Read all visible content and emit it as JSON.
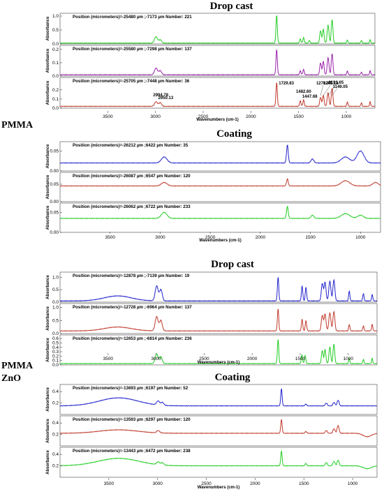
{
  "figure": {
    "side_labels": [
      "PMMA",
      "PMMA",
      "ZnO"
    ]
  },
  "chart_data": [
    {
      "type": "line",
      "title": "Drop cast",
      "xlabel": "Wavenumbers (cm-1)",
      "ylabel": "Absorbance",
      "xlim": [
        4000,
        700
      ],
      "x_ticks": [
        3500,
        3000,
        2500,
        2000,
        1500,
        1000
      ],
      "panels": [
        {
          "position": "Position (micrometers)=-25480 µm ;-7173 µm  Number: 221",
          "color": "#22cc22",
          "ylim": [
            0,
            1.05
          ],
          "y_ticks": [
            0.0,
            0.5,
            1.0
          ],
          "y_tick_labels": [
            "0.0",
            "0.5",
            "1.0"
          ],
          "base": 0.03,
          "peaks": [
            [
              2994,
              0.23,
              22
            ],
            [
              2950,
              0.12,
              20
            ],
            [
              1730,
              1.0,
              10
            ],
            [
              1482,
              0.15,
              10
            ],
            [
              1448,
              0.2,
              10
            ],
            [
              1388,
              0.1,
              9
            ],
            [
              1270,
              0.45,
              12
            ],
            [
              1241,
              0.5,
              12
            ],
            [
              1191,
              0.65,
              13
            ],
            [
              1149,
              0.85,
              12
            ],
            [
              989,
              0.12,
              8
            ],
            [
              842,
              0.1,
              8
            ],
            [
              750,
              0.12,
              8
            ]
          ]
        },
        {
          "position": "Position (micrometers)=-25580 µm ;-7298 µm  Number: 137",
          "color": "#9922aa",
          "ylim": [
            0,
            0.22
          ],
          "y_ticks": [
            0.0,
            0.1,
            0.2
          ],
          "y_tick_labels": [
            "0.0",
            "0.1",
            "0.2"
          ],
          "base": 0.01,
          "peaks": [
            [
              2994,
              0.05,
              22
            ],
            [
              2950,
              0.03,
              20
            ],
            [
              1730,
              0.19,
              10
            ],
            [
              1482,
              0.03,
              10
            ],
            [
              1448,
              0.04,
              10
            ],
            [
              1270,
              0.09,
              12
            ],
            [
              1241,
              0.1,
              12
            ],
            [
              1191,
              0.13,
              13
            ],
            [
              1149,
              0.16,
              12
            ],
            [
              989,
              0.03,
              8
            ],
            [
              842,
              0.02,
              8
            ],
            [
              750,
              0.03,
              8
            ]
          ]
        },
        {
          "position": "Position (micrometers)=-25705 µm ;-7448 µm  Number: 36",
          "color": "#c0392b",
          "ylim": [
            0,
            0.32
          ],
          "y_ticks": [
            0.0,
            0.1,
            0.2
          ],
          "y_tick_labels": [
            "0.0",
            "0.1",
            "0.2"
          ],
          "base": 0.02,
          "peaks": [
            [
              2994,
              0.05,
              22
            ],
            [
              2950,
              0.04,
              20
            ],
            [
              1730,
              0.26,
              10
            ],
            [
              1482,
              0.06,
              10
            ],
            [
              1448,
              0.07,
              10
            ],
            [
              1270,
              0.1,
              12
            ],
            [
              1241,
              0.12,
              12
            ],
            [
              1191,
              0.15,
              13
            ],
            [
              1149,
              0.2,
              12
            ],
            [
              989,
              0.05,
              8
            ],
            [
              842,
              0.04,
              8
            ],
            [
              750,
              0.05,
              8
            ]
          ],
          "annotations": [
            "1729.83",
            "1482.60",
            "1447.68",
            "1270.97",
            "1241.18",
            "1191.65",
            "1149.05",
            "2994.78",
            "2950.13"
          ]
        }
      ]
    },
    {
      "type": "line",
      "title": "Coating",
      "xlabel": "Wavenumbers (cm-1)",
      "ylabel": "Absorbance",
      "xlim": [
        4000,
        800
      ],
      "x_ticks": [
        3500,
        3000,
        2500,
        2000,
        1500,
        1000
      ],
      "panels": [
        {
          "position": "Position (micrometers)=-26212 µm ;6422 µm  Number: 35",
          "color": "#2222cc",
          "ylim": [
            0,
            0.07
          ],
          "y_ticks": [
            0.0,
            0.05
          ],
          "y_tick_labels": [
            "0.00",
            "0.05"
          ],
          "base": 0.02,
          "peaks": [
            [
              2960,
              0.015,
              40
            ],
            [
              1730,
              0.045,
              12
            ],
            [
              1480,
              0.01,
              20
            ],
            [
              1150,
              0.015,
              60
            ],
            [
              1000,
              0.03,
              50
            ]
          ]
        },
        {
          "position": "Position (micrometers)=-26087 µm ;6547 µm  Number: 120",
          "color": "#c0392b",
          "ylim": [
            0,
            0.08
          ],
          "y_ticks": [
            0.0,
            0.05
          ],
          "y_tick_labels": [
            "0.00",
            "0.05"
          ],
          "base": 0.045,
          "peaks": [
            [
              2960,
              0.01,
              40
            ],
            [
              1730,
              0.02,
              12
            ],
            [
              1150,
              0.015,
              60
            ],
            [
              850,
              0.01,
              40
            ]
          ]
        },
        {
          "position": "Position (micrometers)=-26062 µm ;6722 µm  Number: 233",
          "color": "#22cc22",
          "ylim": [
            0,
            0.07
          ],
          "y_ticks": [
            0.0,
            0.05
          ],
          "y_tick_labels": [
            "0.00",
            "0.05"
          ],
          "base": 0.035,
          "peaks": [
            [
              2960,
              0.015,
              40
            ],
            [
              1730,
              0.03,
              12
            ],
            [
              1480,
              0.008,
              20
            ],
            [
              1150,
              0.012,
              60
            ],
            [
              1000,
              0.008,
              40
            ]
          ]
        }
      ]
    },
    {
      "type": "line",
      "title": "Drop cast",
      "xlabel": "Wavenumbers (cm-1)",
      "ylabel": "Absorbance",
      "xlim": [
        4000,
        700
      ],
      "x_ticks": [
        3500,
        3000,
        2500,
        2000,
        1500,
        1000
      ],
      "panels": [
        {
          "position": "Position (micrometers)=-12878 µm ;-7139 µm  Number: 19",
          "color": "#2222cc",
          "ylim": [
            0,
            1.15
          ],
          "y_ticks": [
            0.0,
            0.5,
            1.0
          ],
          "y_tick_labels": [
            "0.0",
            "0.5",
            "1.0"
          ],
          "base": 0.05,
          "peaks": [
            [
              3400,
              0.2,
              200
            ],
            [
              2994,
              0.6,
              22
            ],
            [
              2950,
              0.45,
              20
            ],
            [
              1730,
              0.95,
              10
            ],
            [
              1480,
              0.6,
              10
            ],
            [
              1440,
              0.55,
              10
            ],
            [
              1270,
              0.7,
              14
            ],
            [
              1241,
              0.75,
              14
            ],
            [
              1191,
              0.8,
              15
            ],
            [
              1149,
              0.85,
              14
            ],
            [
              989,
              0.4,
              9
            ],
            [
              842,
              0.3,
              9
            ],
            [
              750,
              0.25,
              9
            ]
          ]
        },
        {
          "position": "Position (micrometers)=-12728 µm ;-6964 µm  Number: 137",
          "color": "#c0392b",
          "ylim": [
            0,
            1.1
          ],
          "y_ticks": [
            0.0,
            0.5,
            1.0
          ],
          "y_tick_labels": [
            "0.0",
            "0.5",
            "1.0"
          ],
          "base": 0.1,
          "peaks": [
            [
              3400,
              0.15,
              200
            ],
            [
              2994,
              0.55,
              22
            ],
            [
              2950,
              0.4,
              20
            ],
            [
              1730,
              0.85,
              10
            ],
            [
              1480,
              0.45,
              10
            ],
            [
              1440,
              0.4,
              10
            ],
            [
              1270,
              0.6,
              14
            ],
            [
              1241,
              0.65,
              14
            ],
            [
              1191,
              0.7,
              15
            ],
            [
              1149,
              0.75,
              14
            ],
            [
              989,
              0.25,
              9
            ],
            [
              842,
              0.2,
              9
            ],
            [
              750,
              0.25,
              9
            ]
          ]
        },
        {
          "position": "Position (micrometers)=-12653 µm ;-6814 µm  Number: 236",
          "color": "#22cc22",
          "ylim": [
            0,
            0.65
          ],
          "y_ticks": [
            0.0,
            0.1,
            0.2,
            0.3,
            0.4,
            0.5,
            0.6
          ],
          "y_tick_labels": [
            "0.0",
            "0.1",
            "0.2",
            "0.3",
            "0.4",
            "0.5",
            "0.6"
          ],
          "base": 0.03,
          "peaks": [
            [
              2994,
              0.22,
              22
            ],
            [
              2950,
              0.15,
              20
            ],
            [
              1730,
              0.55,
              10
            ],
            [
              1482,
              0.2,
              10
            ],
            [
              1448,
              0.18,
              10
            ],
            [
              1270,
              0.3,
              12
            ],
            [
              1241,
              0.32,
              12
            ],
            [
              1191,
              0.38,
              13
            ],
            [
              1149,
              0.45,
              12
            ],
            [
              989,
              0.12,
              8
            ],
            [
              842,
              0.1,
              8
            ],
            [
              750,
              0.12,
              8
            ]
          ]
        }
      ]
    },
    {
      "type": "line",
      "title": "Coating",
      "xlabel": "Wavenumbers (cm-1)",
      "ylabel": "Absorbance",
      "xlim": [
        4000,
        750
      ],
      "x_ticks": [
        3500,
        3000,
        2500,
        2000,
        1500,
        1000
      ],
      "panels": [
        {
          "position": "Position (micrometers)=-13693 µm ;6197 µm  Number: 52",
          "color": "#2222cc",
          "ylim": [
            0,
            0.5
          ],
          "y_ticks": [
            0.2,
            0.4
          ],
          "y_tick_labels": [
            "0.2",
            "0.4"
          ],
          "base": 0.15,
          "peaks": [
            [
              3400,
              0.14,
              280
            ],
            [
              2994,
              0.07,
              22
            ],
            [
              2950,
              0.05,
              20
            ],
            [
              1730,
              0.3,
              10
            ],
            [
              1480,
              0.03,
              12
            ],
            [
              1270,
              0.05,
              14
            ],
            [
              1191,
              0.06,
              15
            ],
            [
              1149,
              0.1,
              14
            ]
          ]
        },
        {
          "position": "Position (micrometers)=-13593 µm ;6297 µm  Number: 120",
          "color": "#c0392b",
          "ylim": [
            0,
            0.5
          ],
          "y_ticks": [
            0.2,
            0.4
          ],
          "y_tick_labels": [
            "0.2",
            "0.4"
          ],
          "base": 0.22,
          "peaks": [
            [
              3400,
              0.06,
              280
            ],
            [
              2994,
              0.04,
              22
            ],
            [
              1730,
              0.24,
              10
            ],
            [
              1480,
              0.03,
              12
            ],
            [
              1270,
              0.05,
              14
            ],
            [
              1191,
              0.08,
              15
            ],
            [
              1149,
              0.14,
              14
            ],
            [
              850,
              -0.06,
              60
            ]
          ]
        },
        {
          "position": "Position (micrometers)=-13443 µm ;6472 µm  Number: 238",
          "color": "#22cc22",
          "ylim": [
            0,
            0.5
          ],
          "y_ticks": [
            0.2,
            0.4
          ],
          "y_tick_labels": [
            "0.2",
            "0.4"
          ],
          "base": 0.2,
          "peaks": [
            [
              3400,
              0.13,
              300
            ],
            [
              2994,
              0.05,
              22
            ],
            [
              2950,
              0.04,
              20
            ],
            [
              1730,
              0.26,
              10
            ],
            [
              1480,
              0.04,
              12
            ],
            [
              1270,
              0.06,
              14
            ],
            [
              1191,
              0.08,
              15
            ],
            [
              1149,
              0.1,
              14
            ],
            [
              850,
              -0.05,
              60
            ]
          ]
        }
      ]
    }
  ]
}
